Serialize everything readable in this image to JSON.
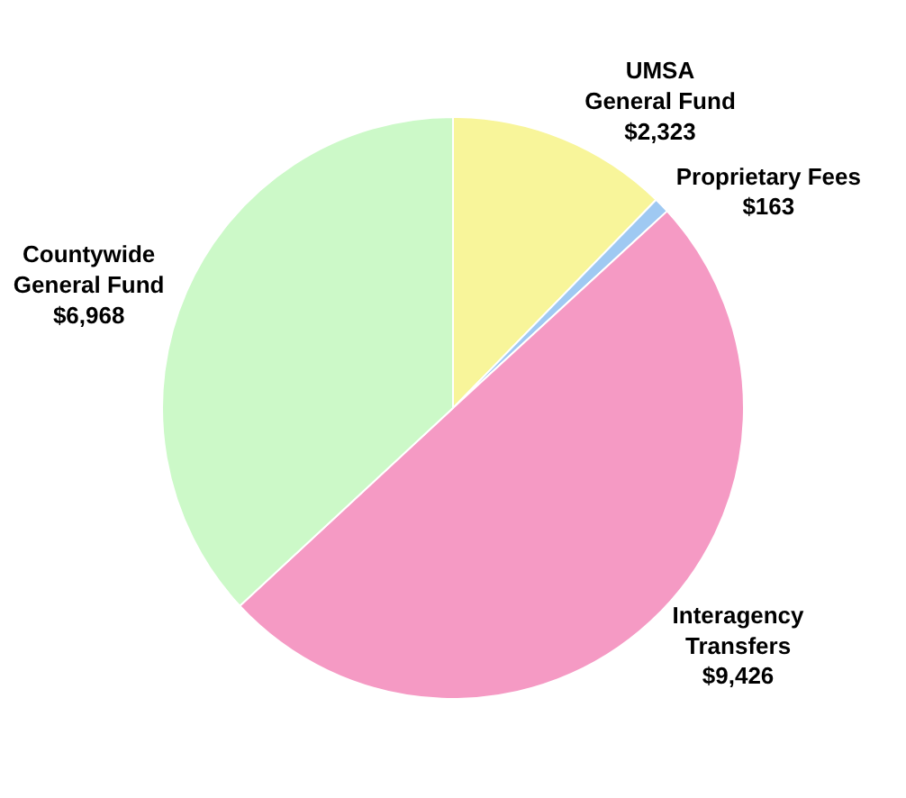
{
  "chart_data": {
    "type": "pie",
    "categories": [
      "UMSA\nGeneral Fund",
      "Proprietary Fees",
      "Interagency\nTransfers",
      "Countywide\nGeneral Fund"
    ],
    "values": [
      2323,
      163,
      9426,
      6968
    ],
    "value_labels": [
      "$2,323",
      "$163",
      "$9,426",
      "$6,968"
    ],
    "colors": [
      "#f8f59a",
      "#9fc9f2",
      "#f59ac4",
      "#ccf9c8"
    ],
    "legend": false
  }
}
